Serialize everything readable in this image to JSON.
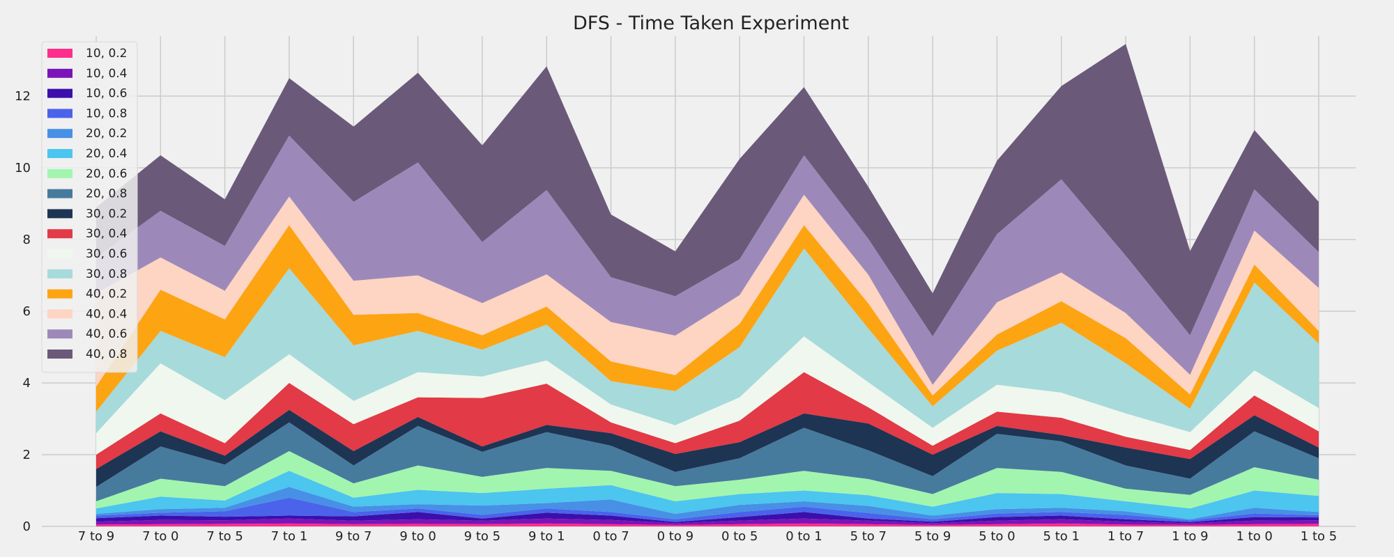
{
  "chart_data": {
    "type": "area",
    "stacked": true,
    "title": "DFS - Time Taken Experiment",
    "xlabel": "",
    "ylabel": "",
    "ylim": [
      0,
      13.6
    ],
    "yticks": [
      0,
      2,
      4,
      6,
      8,
      10,
      12
    ],
    "grid": true,
    "legend_position": "top-left",
    "categories": [
      "7 to 9",
      "7 to 0",
      "7 to 5",
      "7 to 1",
      "9 to 7",
      "9 to 0",
      "9 to 5",
      "9 to 1",
      "0 to 7",
      "0 to 9",
      "0 to 5",
      "0 to 1",
      "5 to 7",
      "5 to 9",
      "5 to 0",
      "5 to 1",
      "1 to 7",
      "1 to 9",
      "1 to 0",
      "1 to 5"
    ],
    "series": [
      {
        "name": "10, 0.2",
        "color": "#fc2f8c",
        "values": [
          0.05,
          0.06,
          0.07,
          0.08,
          0.06,
          0.07,
          0.06,
          0.08,
          0.06,
          0.04,
          0.06,
          0.08,
          0.06,
          0.04,
          0.06,
          0.08,
          0.05,
          0.04,
          0.06,
          0.07
        ]
      },
      {
        "name": "10, 0.4",
        "color": "#7a14b8",
        "values": [
          0.08,
          0.12,
          0.1,
          0.14,
          0.1,
          0.13,
          0.1,
          0.14,
          0.12,
          0.05,
          0.1,
          0.14,
          0.1,
          0.05,
          0.1,
          0.12,
          0.08,
          0.05,
          0.1,
          0.1
        ]
      },
      {
        "name": "10, 0.6",
        "color": "#3a0fab",
        "values": [
          0.1,
          0.12,
          0.1,
          0.08,
          0.12,
          0.2,
          0.06,
          0.16,
          0.12,
          0.03,
          0.1,
          0.18,
          0.06,
          0.04,
          0.1,
          0.1,
          0.07,
          0.03,
          0.1,
          0.08
        ]
      },
      {
        "name": "10, 0.8",
        "color": "#4a63ea",
        "values": [
          0.07,
          0.08,
          0.15,
          0.5,
          0.12,
          0.1,
          0.1,
          0.12,
          0.1,
          0.08,
          0.14,
          0.15,
          0.15,
          0.07,
          0.1,
          0.1,
          0.12,
          0.05,
          0.1,
          0.06
        ]
      },
      {
        "name": "20, 0.2",
        "color": "#4790e6",
        "values": [
          0.05,
          0.1,
          0.1,
          0.3,
          0.15,
          0.12,
          0.26,
          0.15,
          0.35,
          0.15,
          0.2,
          0.15,
          0.2,
          0.1,
          0.12,
          0.12,
          0.1,
          0.03,
          0.16,
          0.09
        ]
      },
      {
        "name": "20, 0.4",
        "color": "#4cc5ef",
        "values": [
          0.15,
          0.35,
          0.2,
          0.45,
          0.25,
          0.4,
          0.35,
          0.4,
          0.4,
          0.35,
          0.3,
          0.3,
          0.3,
          0.25,
          0.45,
          0.38,
          0.28,
          0.3,
          0.48,
          0.45
        ]
      },
      {
        "name": "20, 0.6",
        "color": "#a2f5af",
        "values": [
          0.2,
          0.5,
          0.4,
          0.55,
          0.4,
          0.68,
          0.45,
          0.58,
          0.4,
          0.42,
          0.4,
          0.55,
          0.45,
          0.35,
          0.7,
          0.62,
          0.35,
          0.38,
          0.65,
          0.45
        ]
      },
      {
        "name": "20, 0.8",
        "color": "#467b9d",
        "values": [
          0.4,
          0.9,
          0.6,
          0.8,
          0.5,
          1.1,
          0.7,
          1.0,
          0.7,
          0.4,
          0.6,
          1.2,
          0.8,
          0.5,
          0.95,
          0.85,
          0.65,
          0.45,
          1.0,
          0.6
        ]
      },
      {
        "name": "30, 0.2",
        "color": "#1e3453",
        "values": [
          0.5,
          0.42,
          0.25,
          0.35,
          0.4,
          0.25,
          0.15,
          0.2,
          0.35,
          0.5,
          0.45,
          0.4,
          0.75,
          0.6,
          0.22,
          0.18,
          0.5,
          0.55,
          0.45,
          0.3
        ]
      },
      {
        "name": "30, 0.4",
        "color": "#e23a46",
        "values": [
          0.4,
          0.5,
          0.35,
          0.75,
          0.75,
          0.55,
          1.35,
          1.15,
          0.3,
          0.3,
          0.6,
          1.15,
          0.45,
          0.25,
          0.4,
          0.48,
          0.3,
          0.25,
          0.55,
          0.45
        ]
      },
      {
        "name": "30, 0.6",
        "color": "#f0f7ee",
        "values": [
          0.6,
          1.4,
          1.2,
          0.8,
          0.65,
          0.7,
          0.6,
          0.65,
          0.5,
          0.5,
          0.65,
          1.0,
          0.7,
          0.5,
          0.75,
          0.7,
          0.65,
          0.5,
          0.7,
          0.65
        ]
      },
      {
        "name": "30, 0.8",
        "color": "#a7dadb",
        "values": [
          0.6,
          0.9,
          1.2,
          2.4,
          1.55,
          1.15,
          0.75,
          1.0,
          0.65,
          0.95,
          1.4,
          2.45,
          1.5,
          0.6,
          0.95,
          1.95,
          1.4,
          0.65,
          2.45,
          1.8
        ]
      },
      {
        "name": "40, 0.2",
        "color": "#fda413",
        "values": [
          0.7,
          1.15,
          1.05,
          1.2,
          0.85,
          0.5,
          0.4,
          0.5,
          0.55,
          0.45,
          0.65,
          0.65,
          0.7,
          0.3,
          0.45,
          0.6,
          0.7,
          0.4,
          0.5,
          0.35
        ]
      },
      {
        "name": "40, 0.4",
        "color": "#fed4c2",
        "values": [
          2.6,
          0.9,
          0.8,
          0.8,
          0.95,
          1.05,
          0.9,
          0.9,
          1.1,
          1.1,
          0.8,
          0.85,
          0.8,
          0.3,
          0.9,
          0.8,
          0.7,
          0.55,
          0.95,
          1.2
        ]
      },
      {
        "name": "40, 0.6",
        "color": "#9d89b9",
        "values": [
          1.0,
          1.3,
          1.25,
          1.7,
          2.2,
          3.15,
          1.7,
          2.35,
          1.25,
          1.1,
          1.0,
          1.1,
          1.0,
          1.35,
          1.9,
          2.6,
          1.6,
          1.1,
          1.15,
          1.0
        ]
      },
      {
        "name": "40, 0.8",
        "color": "#6b597a",
        "values": [
          1.4,
          1.55,
          1.3,
          1.6,
          2.1,
          2.5,
          2.7,
          3.45,
          1.75,
          1.25,
          2.8,
          1.9,
          1.45,
          1.2,
          2.05,
          2.6,
          5.9,
          2.35,
          1.65,
          1.4
        ]
      }
    ]
  }
}
